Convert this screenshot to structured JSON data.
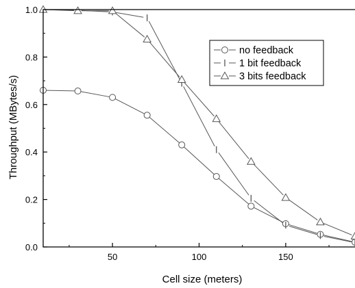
{
  "chart_data": {
    "type": "line",
    "xlabel": "Cell size (meters)",
    "ylabel": "Throughput (MBytes/s)",
    "xlim": [
      10,
      190
    ],
    "ylim": [
      0.0,
      1.0
    ],
    "xticks": [
      50,
      100,
      150
    ],
    "yticks": [
      0.0,
      0.2,
      0.4,
      0.6,
      0.8,
      1.0
    ],
    "yticklabels": [
      "0.0",
      "0.2",
      "0.4",
      "0.6",
      "0.8",
      "1.0"
    ],
    "grid": false,
    "legend_position": "top-right",
    "series": [
      {
        "name": "no feedback",
        "marker": "circle",
        "x": [
          10,
          30,
          50,
          70,
          90,
          110,
          130,
          150,
          170,
          190
        ],
        "y": [
          0.66,
          0.657,
          0.63,
          0.555,
          0.43,
          0.297,
          0.172,
          0.098,
          0.053,
          0.02
        ]
      },
      {
        "name": "1 bit feedback",
        "marker": "bar",
        "x": [
          10,
          30,
          50,
          70,
          90,
          110,
          130,
          150,
          170,
          190
        ],
        "y": [
          1.0,
          0.997,
          0.99,
          0.965,
          0.69,
          0.41,
          0.205,
          0.092,
          0.048,
          0.018
        ]
      },
      {
        "name": "3 bits feedback",
        "marker": "triangle",
        "x": [
          10,
          30,
          50,
          70,
          90,
          110,
          130,
          150,
          170,
          190
        ],
        "y": [
          1.0,
          0.995,
          0.995,
          0.875,
          0.705,
          0.54,
          0.36,
          0.208,
          0.105,
          0.045
        ]
      }
    ]
  }
}
